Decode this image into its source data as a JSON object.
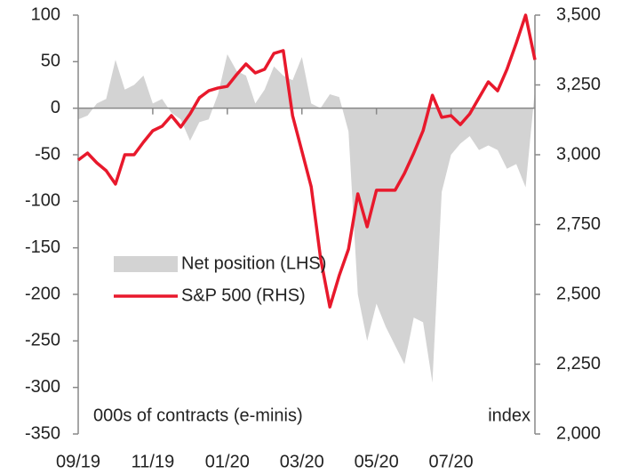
{
  "chart_data": {
    "type": "area_line",
    "categories": [
      "09/19",
      null,
      null,
      null,
      null,
      null,
      null,
      null,
      "11/19",
      null,
      null,
      null,
      null,
      null,
      null,
      null,
      "01/20",
      null,
      null,
      null,
      null,
      null,
      null,
      null,
      "03/20",
      null,
      null,
      null,
      null,
      null,
      null,
      null,
      "05/20",
      null,
      null,
      null,
      null,
      null,
      null,
      null,
      "07/20",
      null,
      null,
      null,
      null,
      null,
      null,
      null,
      null,
      null
    ],
    "series": [
      {
        "name": "Net position (LHS)",
        "color": "#d3d3d3",
        "axis": "y",
        "values": [
          -12,
          -8,
          5,
          10,
          52,
          20,
          25,
          35,
          5,
          10,
          -5,
          -12,
          -35,
          -15,
          -12,
          15,
          58,
          40,
          35,
          5,
          20,
          45,
          35,
          30,
          55,
          5,
          0,
          15,
          12,
          -25,
          -200,
          -250,
          -210,
          -235,
          -255,
          -275,
          -225,
          -230,
          -295,
          -90,
          -50,
          -38,
          -30,
          -45,
          -40,
          -45,
          -65,
          -60,
          -85,
          20
        ]
      },
      {
        "name": "S&P 500 (RHS)",
        "color": "#e8192c",
        "axis": "y2",
        "values": [
          2981,
          3006,
          2971,
          2943,
          2895,
          3000,
          3000,
          3045,
          3086,
          3102,
          3140,
          3099,
          3146,
          3204,
          3229,
          3239,
          3245,
          3287,
          3325,
          3293,
          3306,
          3363,
          3373,
          3140,
          3013,
          2885,
          2630,
          2455,
          2567,
          2662,
          2860,
          2742,
          2873,
          2873,
          2873,
          2933,
          3006,
          3086,
          3213,
          3134,
          3140,
          3108,
          3146,
          3204,
          3261,
          3229,
          3306,
          3400,
          3500,
          3340
        ]
      }
    ],
    "ylim": [
      -350,
      100
    ],
    "yticks": [
      -350,
      -300,
      -250,
      -200,
      -150,
      -100,
      -50,
      0,
      50,
      100
    ],
    "y2lim": [
      2000,
      3500
    ],
    "y2ticks": [
      {
        "value": 2000,
        "label": "2,000"
      },
      {
        "value": 2250,
        "label": "2,250"
      },
      {
        "value": 2500,
        "label": "2,500"
      },
      {
        "value": 2750,
        "label": "2,750"
      },
      {
        "value": 3000,
        "label": "3,000"
      },
      {
        "value": 3250,
        "label": "3,250"
      },
      {
        "value": 3500,
        "label": "3,500"
      }
    ],
    "annotations": [
      "000s of contracts (e-minis)",
      "index"
    ],
    "legend": "left"
  }
}
